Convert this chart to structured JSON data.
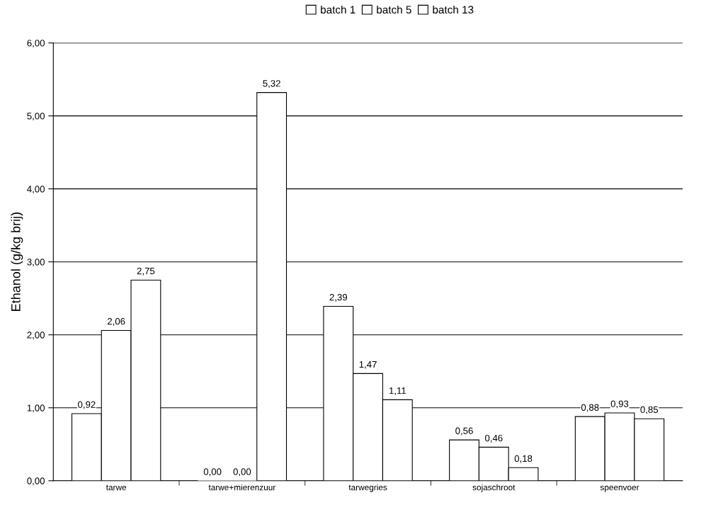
{
  "chart_data": {
    "type": "bar",
    "categories": [
      "tarwe",
      "tarwe+mierenzuur",
      "tarwegries",
      "sojaschroot",
      "speenvoer"
    ],
    "series": [
      {
        "name": "batch 1",
        "color": "#ffffff",
        "values": [
          0.92,
          0.0,
          2.39,
          0.56,
          0.88
        ],
        "value_labels": [
          "0,92",
          "0,00",
          "2,39",
          "0,56",
          "0,88"
        ]
      },
      {
        "name": "batch 5",
        "color": "#ffffff",
        "values": [
          2.06,
          0.0,
          1.47,
          0.46,
          0.93
        ],
        "value_labels": [
          "2,06",
          "0,00",
          "1,47",
          "0,46",
          "0,93"
        ]
      },
      {
        "name": "batch 13",
        "color": "#ffffff",
        "values": [
          2.75,
          5.32,
          1.11,
          0.18,
          0.85
        ],
        "value_labels": [
          "2,75",
          "5,32",
          "1,11",
          "0,18",
          "0,85"
        ]
      }
    ],
    "ylabel": "Ethanol (g/kg brij)",
    "ylim": [
      0,
      6
    ],
    "yticks": [
      {
        "value": 0,
        "label": "0,00"
      },
      {
        "value": 1,
        "label": "1,00"
      },
      {
        "value": 2,
        "label": "2,00"
      },
      {
        "value": 3,
        "label": "3,00"
      },
      {
        "value": 4,
        "label": "4,00"
      },
      {
        "value": 5,
        "label": "5,00"
      },
      {
        "value": 6,
        "label": "6,00"
      }
    ],
    "grid": "y",
    "legend": "top"
  }
}
